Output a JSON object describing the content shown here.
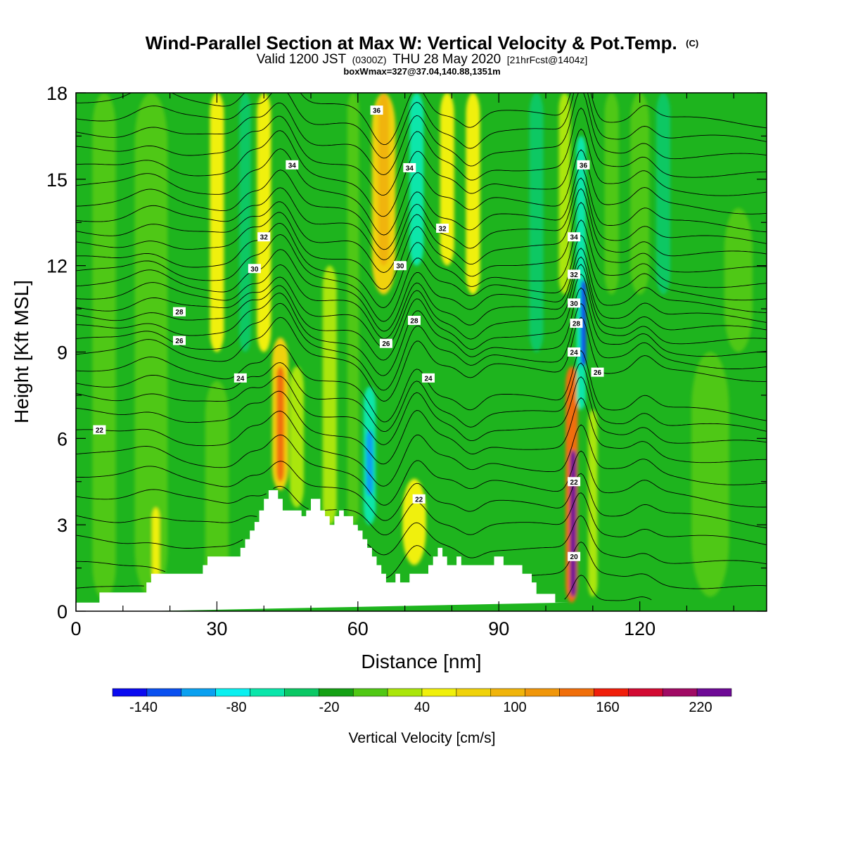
{
  "title": {
    "main": "Wind-Parallel Section at Max W: Vertical Velocity & Pot.Temp.",
    "copyright_mark": "(C)",
    "line2_prefix": "Valid 1200 JST",
    "line2_zulu": "(0300Z)",
    "line2_date": "THU 28 May 2020",
    "line2_fcst": "[21hrFcst@1404z]",
    "line3": "boxWmax=327@37.04,140.88,1351m"
  },
  "chart_data": {
    "type": "heatmap",
    "title": "Wind-Parallel Section at Max W: Vertical Velocity & Pot.Temp.",
    "xlabel": "Distance [nm]",
    "ylabel": "Height [Kft MSL]",
    "xlim": [
      0,
      147
    ],
    "ylim": [
      0,
      18
    ],
    "x_ticks": [
      0,
      30,
      60,
      90,
      120
    ],
    "y_ticks": [
      0,
      3,
      6,
      9,
      12,
      15,
      18
    ],
    "background": "#1eb41e",
    "colorbar": {
      "title": "Vertical Velocity [cm/s]",
      "bounds": [
        -160,
        240
      ],
      "tick_labels": [
        -140,
        -80,
        -20,
        40,
        100,
        160,
        220
      ],
      "colors": [
        "#0a0af0",
        "#0a50f0",
        "#0aa0f0",
        "#0af0f0",
        "#0ae6aa",
        "#0ac864",
        "#14a014",
        "#50c814",
        "#aae60a",
        "#f0f00a",
        "#f0d20a",
        "#f0b40a",
        "#f0960a",
        "#f06e0a",
        "#f01e0a",
        "#d20a32",
        "#a00a64",
        "#6e0a96"
      ]
    },
    "velocity_features": [
      {
        "x": 6,
        "w": 5,
        "y0": 0.4,
        "y1": 18,
        "value": 10
      },
      {
        "x": 16,
        "w": 7,
        "y0": 0.5,
        "y1": 18,
        "value": 10
      },
      {
        "x": 17,
        "w": 1.6,
        "y0": 1.0,
        "y1": 3.6,
        "value": 50
      },
      {
        "x": 30,
        "w": 5,
        "y0": 0.5,
        "y1": 8,
        "value": 10
      },
      {
        "x": 30,
        "w": 3,
        "y0": 9,
        "y1": 18,
        "value": 40
      },
      {
        "x": 36,
        "w": 2.5,
        "y0": 9,
        "y1": 18,
        "value": -30
      },
      {
        "x": 40,
        "w": 3,
        "y0": 9,
        "y1": 18,
        "value": 40
      },
      {
        "x": 43.5,
        "w": 3.5,
        "y0": 4.2,
        "y1": 9.5,
        "value": 80
      },
      {
        "x": 43.5,
        "w": 1.6,
        "y0": 4.5,
        "y1": 8.5,
        "value": 130
      },
      {
        "x": 47,
        "w": 3,
        "y0": 3.6,
        "y1": 8.5,
        "value": 30
      },
      {
        "x": 54,
        "w": 3,
        "y0": 3.0,
        "y1": 12,
        "value": 30
      },
      {
        "x": 59,
        "w": 2.5,
        "y0": 3,
        "y1": 18,
        "value": 0
      },
      {
        "x": 62.5,
        "w": 2.6,
        "y0": 3.0,
        "y1": 7.8,
        "value": -70
      },
      {
        "x": 62.5,
        "w": 1.5,
        "y0": 4.0,
        "y1": 6.3,
        "value": -100
      },
      {
        "x": 65.5,
        "w": 5,
        "y0": 11,
        "y1": 18,
        "value": 70
      },
      {
        "x": 65.5,
        "w": 2.2,
        "y0": 12,
        "y1": 18,
        "value": 90
      },
      {
        "x": 72.5,
        "w": 3,
        "y0": 12,
        "y1": 18,
        "value": -70
      },
      {
        "x": 72,
        "w": 5,
        "y0": 1.6,
        "y1": 4.6,
        "value": 40
      },
      {
        "x": 79,
        "w": 3,
        "y0": 12,
        "y1": 18,
        "value": 40
      },
      {
        "x": 84.5,
        "w": 3,
        "y0": 11,
        "y1": 18,
        "value": 60
      },
      {
        "x": 98,
        "w": 3,
        "y0": 9,
        "y1": 18,
        "value": -30
      },
      {
        "x": 104,
        "w": 2.5,
        "y0": 11,
        "y1": 18,
        "value": 30
      },
      {
        "x": 105.5,
        "w": 2.6,
        "y0": 0.3,
        "y1": 8.5,
        "value": 150
      },
      {
        "x": 105.8,
        "w": 1.3,
        "y0": 0.5,
        "y1": 5.6,
        "value": 220
      },
      {
        "x": 107.5,
        "w": 2,
        "y0": 7.0,
        "y1": 16.5,
        "value": -70
      },
      {
        "x": 108,
        "w": 1.1,
        "y0": 8.5,
        "y1": 11.5,
        "value": -130
      },
      {
        "x": 110,
        "w": 2,
        "y0": 0.5,
        "y1": 7,
        "value": 30
      },
      {
        "x": 114,
        "w": 3,
        "y0": 11,
        "y1": 18,
        "value": 10
      },
      {
        "x": 120,
        "w": 4,
        "y0": 11,
        "y1": 18,
        "value": 10
      },
      {
        "x": 125,
        "w": 3,
        "y0": 11,
        "y1": 18,
        "value": -30
      },
      {
        "x": 135,
        "w": 8,
        "y0": 0.5,
        "y1": 9,
        "value": 10
      },
      {
        "x": 141,
        "w": 6,
        "y0": 9,
        "y1": 14,
        "value": 10
      }
    ],
    "terrain": {
      "x": [
        0,
        5,
        5,
        15,
        15,
        16,
        16,
        27,
        27,
        28,
        28,
        35,
        35,
        36,
        36,
        37,
        37,
        38,
        38,
        39,
        39,
        40,
        40,
        41,
        41,
        43,
        43,
        44,
        44,
        48,
        48,
        49,
        49,
        50,
        50,
        52,
        52,
        53,
        53,
        54,
        54,
        55,
        55,
        56,
        56,
        57,
        57,
        59,
        59,
        60,
        60,
        61,
        61,
        62,
        62,
        63,
        63,
        64,
        64,
        65,
        65,
        66,
        66,
        68,
        68,
        69,
        69,
        71,
        71,
        75,
        75,
        76,
        76,
        77,
        77,
        78,
        78,
        79,
        79,
        81,
        81,
        82,
        82,
        89,
        89,
        91,
        91,
        95,
        95,
        97,
        97,
        98,
        98,
        102,
        102,
        103,
        103,
        104,
        104,
        105,
        105,
        147
      ],
      "y": [
        0.3,
        0.3,
        0.65,
        0.65,
        1.0,
        1.0,
        1.3,
        1.3,
        1.6,
        1.6,
        1.9,
        1.9,
        2.2,
        2.2,
        2.5,
        2.5,
        2.8,
        2.8,
        3.1,
        3.1,
        3.5,
        3.5,
        3.9,
        3.9,
        4.2,
        4.2,
        3.9,
        3.9,
        3.5,
        3.5,
        3.3,
        3.3,
        3.5,
        3.5,
        3.9,
        3.9,
        3.5,
        3.5,
        3.3,
        3.3,
        3.0,
        3.0,
        3.3,
        3.3,
        3.5,
        3.5,
        3.3,
        3.3,
        3.0,
        3.0,
        2.8,
        2.8,
        2.5,
        2.5,
        2.2,
        2.2,
        1.9,
        1.9,
        1.6,
        1.6,
        1.3,
        1.3,
        1.0,
        1.0,
        1.3,
        1.3,
        1.0,
        1.0,
        1.3,
        1.3,
        1.6,
        1.6,
        1.9,
        1.9,
        2.2,
        2.2,
        1.9,
        1.9,
        1.6,
        1.6,
        1.9,
        1.9,
        1.6,
        1.6,
        1.9,
        1.9,
        1.6,
        1.6,
        1.3,
        1.3,
        1.0,
        1.0,
        0.6,
        0.6,
        0.3,
        0.3,
        0.3,
        0.3,
        0.3,
        0.3,
        0.3
      ]
    },
    "theta_contour_levels": [
      20,
      22,
      24,
      26,
      28,
      30,
      32,
      34,
      36
    ],
    "theta_contour_heights_kft": [
      0.8,
      1.6,
      2.5,
      3.3,
      4.1,
      4.8,
      5.5,
      6.2,
      6.9,
      7.5,
      8.0,
      8.5,
      9.0,
      9.4,
      9.8,
      10.2,
      10.6,
      11.0,
      11.4,
      11.8,
      12.2,
      12.7,
      13.2,
      13.7,
      14.2,
      14.8,
      15.4,
      16.0,
      16.6,
      17.2,
      17.8
    ],
    "contour_labels": [
      {
        "text": "34",
        "x": 46,
        "y": 15.5
      },
      {
        "text": "36",
        "x": 64,
        "y": 17.4
      },
      {
        "text": "34",
        "x": 71,
        "y": 15.4
      },
      {
        "text": "36",
        "x": 108,
        "y": 15.5
      },
      {
        "text": "32",
        "x": 40,
        "y": 13.0
      },
      {
        "text": "32",
        "x": 78,
        "y": 13.3
      },
      {
        "text": "34",
        "x": 106,
        "y": 13.0
      },
      {
        "text": "30",
        "x": 38,
        "y": 11.9
      },
      {
        "text": "30",
        "x": 69,
        "y": 12.0
      },
      {
        "text": "32",
        "x": 106,
        "y": 11.7
      },
      {
        "text": "30",
        "x": 106,
        "y": 10.7
      },
      {
        "text": "28",
        "x": 22,
        "y": 10.4
      },
      {
        "text": "28",
        "x": 72,
        "y": 10.1
      },
      {
        "text": "28",
        "x": 106.5,
        "y": 10.0
      },
      {
        "text": "26",
        "x": 22,
        "y": 9.4
      },
      {
        "text": "26",
        "x": 66,
        "y": 9.3
      },
      {
        "text": "24",
        "x": 106,
        "y": 9.0
      },
      {
        "text": "26",
        "x": 111,
        "y": 8.3
      },
      {
        "text": "24",
        "x": 35,
        "y": 8.1
      },
      {
        "text": "24",
        "x": 75,
        "y": 8.1
      },
      {
        "text": "22",
        "x": 5,
        "y": 6.3
      },
      {
        "text": "22",
        "x": 73,
        "y": 3.9
      },
      {
        "text": "22",
        "x": 106,
        "y": 4.5
      },
      {
        "text": "20",
        "x": 106,
        "y": 1.9
      }
    ]
  }
}
